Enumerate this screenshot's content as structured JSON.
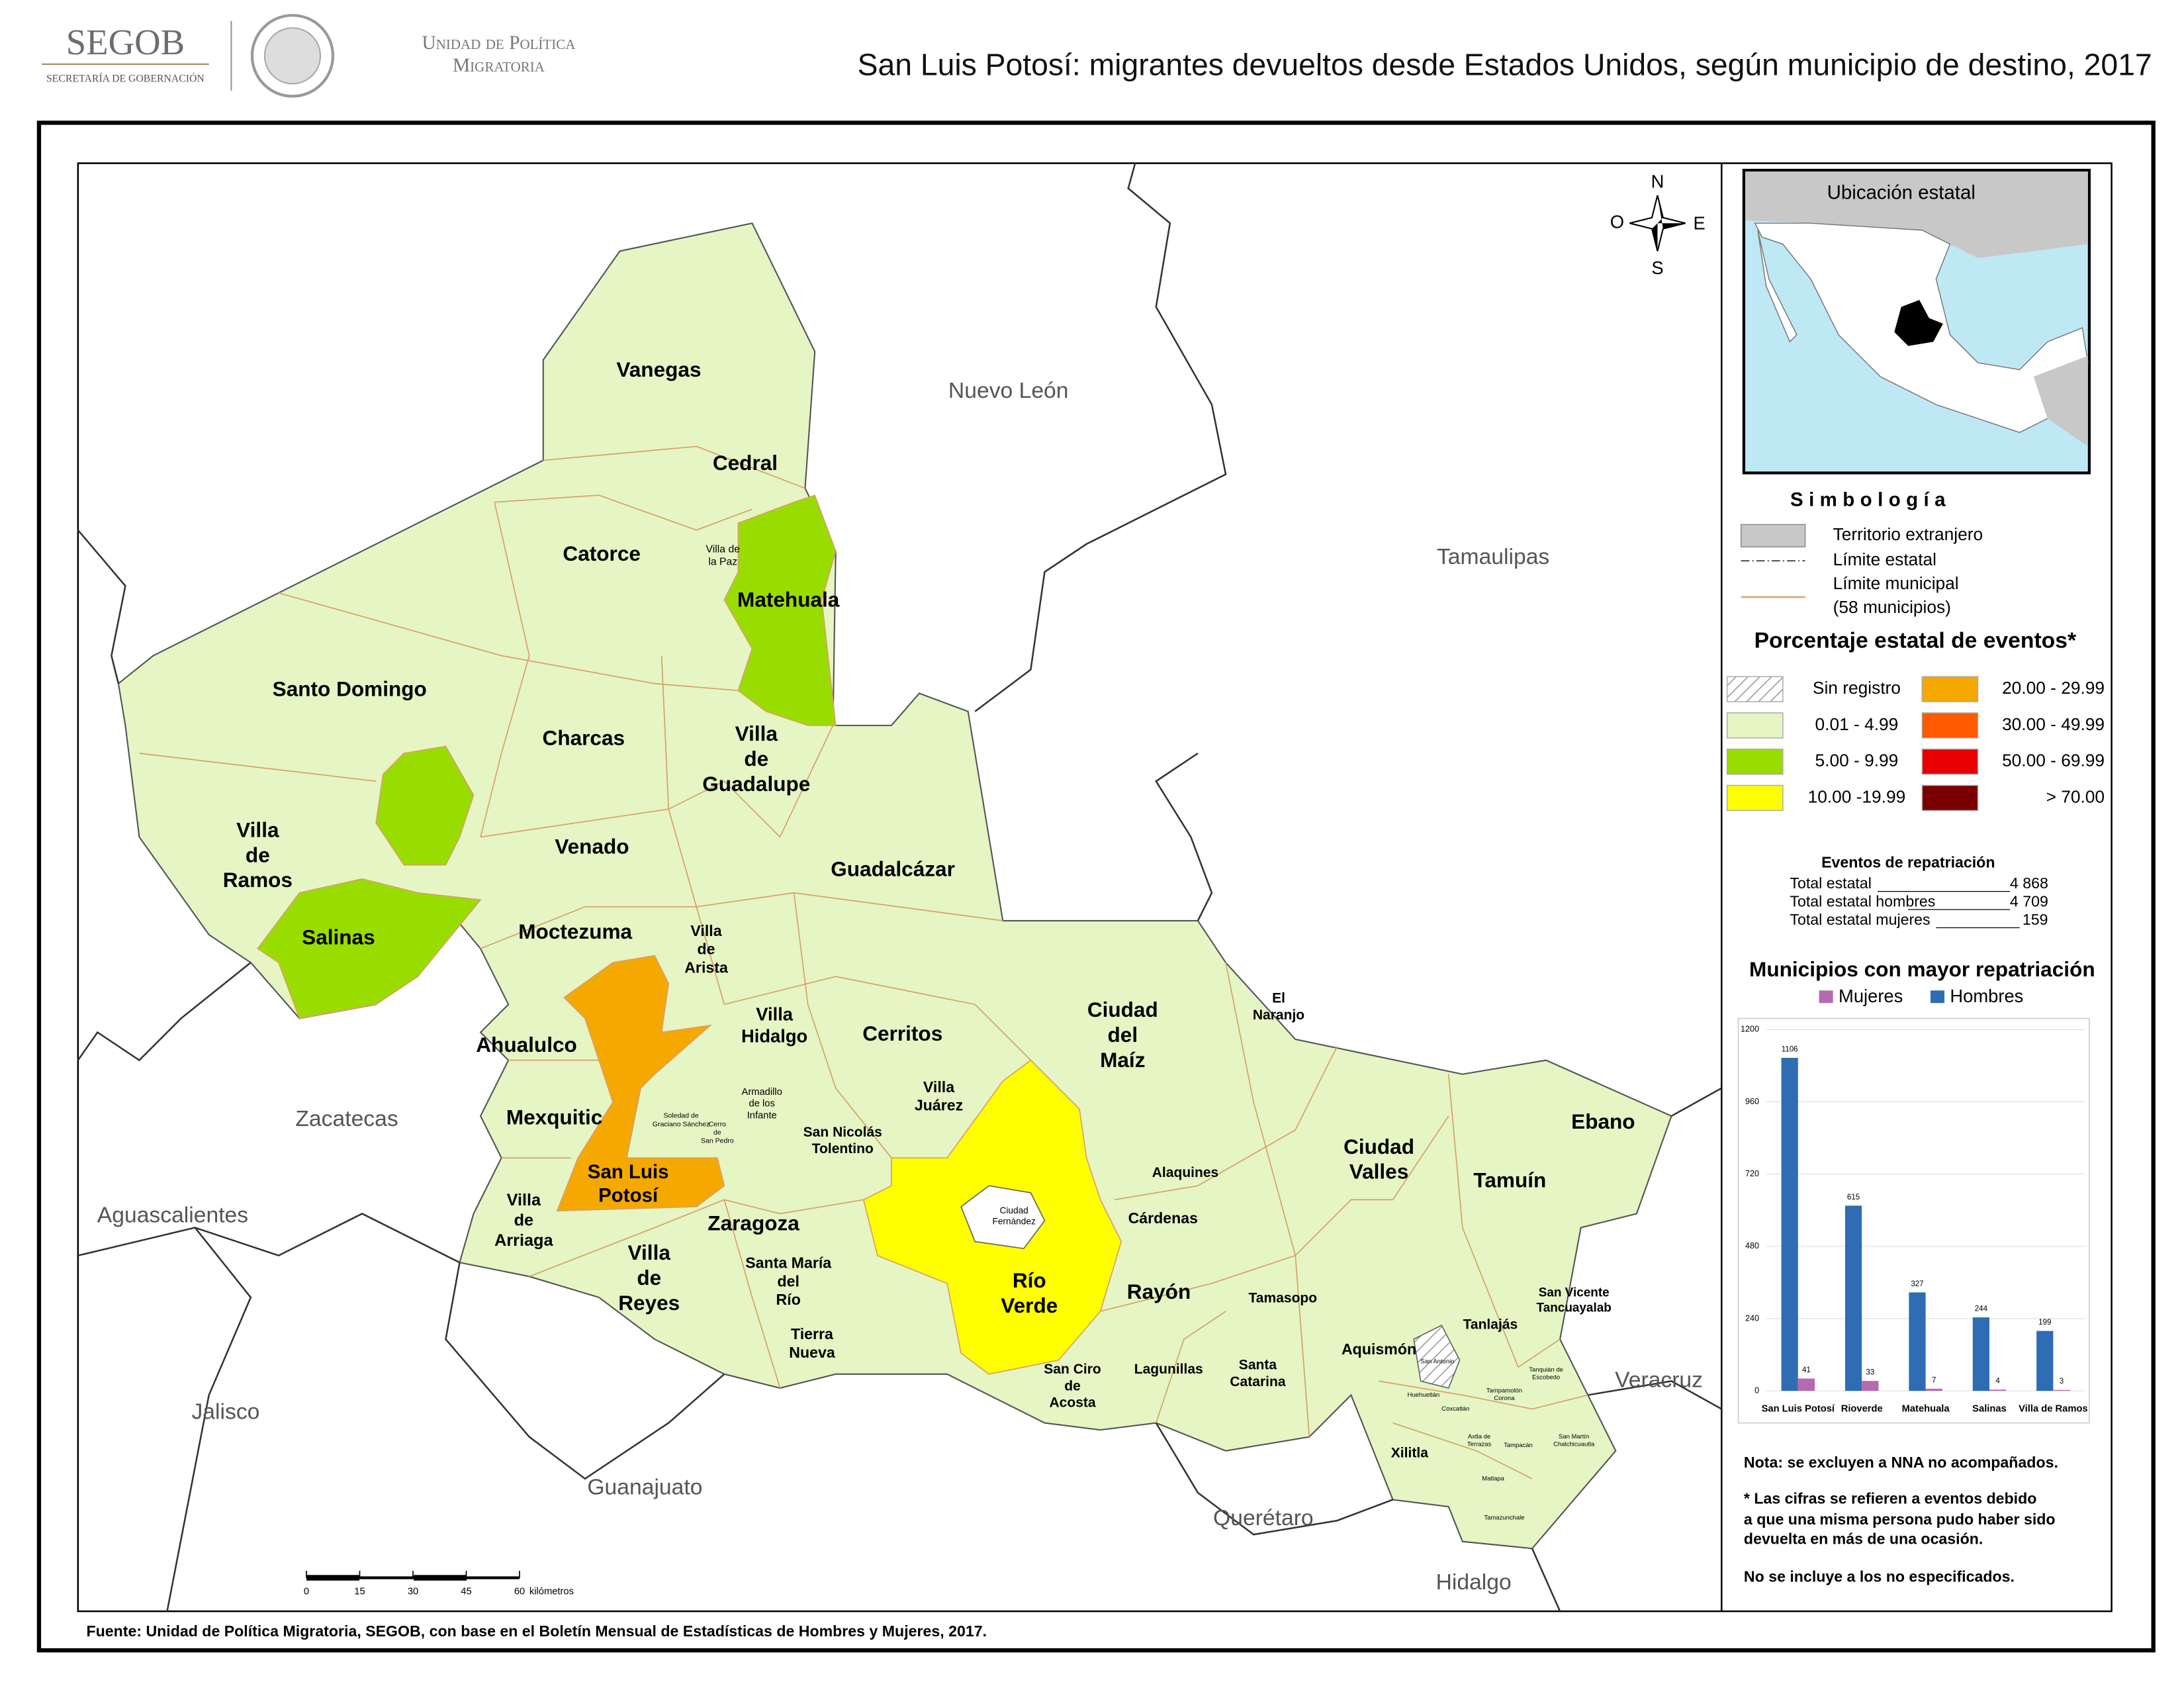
{
  "header": {
    "logo": "SEGOB",
    "logo_subtitle": "SECRETARÍA DE GOBERNACIÓN",
    "unit": [
      "Unidad de Política",
      "Migratoria"
    ],
    "title": "San Luis Potosí: migrantes devueltos desde Estados Unidos, según municipio de destino, 2017"
  },
  "map": {
    "municipalities": [
      [
        "Vanegas"
      ],
      [
        "Cedral"
      ],
      [
        "Catorce"
      ],
      [
        "Matehuala"
      ],
      [
        "Santo Domingo"
      ],
      [
        "Charcas"
      ],
      [
        "Villa",
        "de",
        "Guadalupe"
      ],
      [
        "Villa",
        "de",
        "Ramos"
      ],
      [
        "Venado"
      ],
      [
        "Guadalcázar"
      ],
      [
        "Salinas"
      ],
      [
        "Moctezuma"
      ],
      [
        "Ciudad",
        "del",
        "Maíz"
      ],
      [
        "Ahualulco"
      ],
      [
        "Villa",
        "Hidalgo"
      ],
      [
        "Cerritos"
      ],
      [
        "Mexquitic"
      ],
      [
        "San Luis",
        "Potosí"
      ],
      [
        "Zaragoza"
      ],
      [
        "Villa",
        "de",
        "Reyes"
      ],
      [
        "Río",
        "Verde"
      ],
      [
        "Rayón"
      ],
      [
        "Ciudad",
        "Valles"
      ],
      [
        "Tamuín"
      ],
      [
        "Ebano"
      ],
      [
        "Villa",
        "de",
        "Arista"
      ],
      [
        "Villa",
        "de",
        "Arriaga"
      ],
      [
        "Villa",
        "Juárez"
      ],
      [
        "San Nicolás",
        "Tolentino"
      ],
      [
        "Santa María",
        "del",
        "Río"
      ],
      [
        "Tierra",
        "Nueva"
      ],
      [
        "San Ciro",
        "de",
        "Acosta"
      ],
      [
        "Lagunillas"
      ],
      [
        "Santa",
        "Catarina"
      ],
      [
        "Tamasopo"
      ],
      [
        "Cárdenas"
      ],
      [
        "Alaquines"
      ],
      [
        "El",
        "Naranjo"
      ],
      [
        "Aquismón"
      ],
      [
        "Tanlajás"
      ],
      [
        "San Vicente",
        "Tancuayalab"
      ],
      [
        "Xilitla"
      ],
      [
        "Villa de",
        "la Paz"
      ],
      [
        "Armadillo",
        "de los",
        "Infante"
      ],
      [
        "Ciudad",
        "Fernández"
      ],
      [
        "Soledad de",
        "Graciano Sánchez"
      ],
      [
        "Cerro",
        "de",
        "San Pedro"
      ],
      [
        "San Antonio"
      ],
      [
        "Huehuetlán"
      ],
      [
        "Coxcatlán"
      ],
      [
        "Axtla de",
        "Terrazas"
      ],
      [
        "Matlapa"
      ],
      [
        "Tampamolón",
        "Corona"
      ],
      [
        "Tanquián de",
        "Escobedo"
      ],
      [
        "San Martín",
        "Chalchicuautla"
      ],
      [
        "Tampacán"
      ],
      [
        "Tamazunchale"
      ]
    ],
    "states": [
      "Nuevo León",
      "Tamaulipas",
      "Zacatecas",
      "Aguascalientes",
      "Jalisco",
      "Guanajuato",
      "Querétaro",
      "Hidalgo",
      "Veracruz"
    ],
    "compass": {
      "n": "N",
      "s": "S",
      "e": "E",
      "o": "O"
    },
    "scale": {
      "ticks": [
        0,
        15,
        30,
        45,
        60
      ],
      "unit": "kilómetros"
    },
    "inset_title": "Ubicación estatal"
  },
  "legend": {
    "title": "Simbología",
    "items": [
      "Territorio extranjero",
      "Límite estatal",
      "Límite municipal",
      "(58 municipios)"
    ],
    "classes_title": "Porcentaje estatal de eventos*",
    "classes": [
      {
        "label": "Sin registro",
        "color": "hatch"
      },
      {
        "label": "0.01  - 4.99",
        "color": "#e5f5c4"
      },
      {
        "label": "5.00  - 9.99",
        "color": "#99dd00"
      },
      {
        "label": "10.00 -19.99",
        "color": "#ffff00"
      },
      {
        "label": "20.00 - 29.99",
        "color": "#f5a800"
      },
      {
        "label": "30.00 - 49.99",
        "color": "#ff5a00"
      },
      {
        "label": "50.00 - 69.99",
        "color": "#e80000"
      },
      {
        "label": "> 70.00",
        "color": "#7a0000"
      }
    ]
  },
  "totals": {
    "title": "Eventos de repatriación",
    "rows": [
      {
        "label": "Total estatal",
        "value": "4 868"
      },
      {
        "label": "Total estatal hombres",
        "value": "4 709"
      },
      {
        "label": "Total estatal mujeres",
        "value": "159"
      }
    ]
  },
  "chart_data": {
    "type": "bar",
    "title": "Municipios con mayor repatriación",
    "categories": [
      "San Luis Potosí",
      "Rioverde",
      "Matehuala",
      "Salinas",
      "Villa de Ramos"
    ],
    "series": [
      {
        "name": "Hombres",
        "color": "#2e6db4",
        "values": [
          1106,
          615,
          327,
          244,
          199
        ]
      },
      {
        "name": "Mujeres",
        "color": "#b56bb0",
        "values": [
          41,
          33,
          7,
          4,
          3
        ]
      }
    ],
    "ylim": [
      0,
      1200
    ],
    "yticks": [
      0,
      240,
      480,
      720,
      960,
      1200
    ]
  },
  "notes": [
    "Nota: se excluyen a NNA no acompañados.",
    "* Las cifras se refieren a eventos debido",
    "a que una misma persona pudo haber sido",
    "devuelta en más de una ocasión.",
    "No se incluye a los no especificados."
  ],
  "source": "Fuente: Unidad de Política Migratoria, SEGOB, con base en el Boletín Mensual de Estadísticas de Hombres y Mujeres, 2017."
}
